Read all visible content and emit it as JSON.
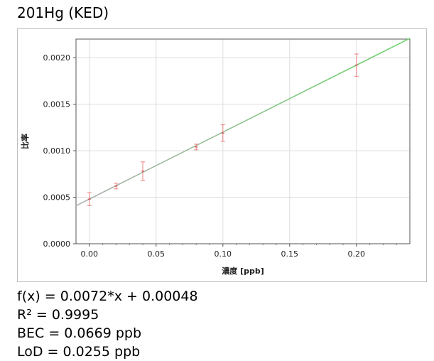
{
  "title": "201Hg (KED)",
  "chart_data": {
    "type": "scatter",
    "xlabel": "濃度 [ppb]",
    "ylabel": "比率",
    "xlim": [
      -0.01,
      0.24
    ],
    "ylim": [
      0,
      0.0022
    ],
    "x_ticks": [
      "0.00",
      "0.05",
      "0.10",
      "0.15",
      "0.20"
    ],
    "y_ticks": [
      "0.0000",
      "0.0005",
      "0.0010",
      "0.0015",
      "0.0020"
    ],
    "grid": true,
    "points": [
      {
        "x": 0.0,
        "y": 0.00048,
        "err": 7e-05
      },
      {
        "x": 0.02,
        "y": 0.00062,
        "err": 3e-05
      },
      {
        "x": 0.04,
        "y": 0.00078,
        "err": 0.0001
      },
      {
        "x": 0.08,
        "y": 0.00104,
        "err": 3e-05
      },
      {
        "x": 0.1,
        "y": 0.00119,
        "err": 9e-05
      },
      {
        "x": 0.2,
        "y": 0.00192,
        "err": 0.00012
      }
    ],
    "fit": {
      "slope": 0.0072,
      "intercept": 0.00048
    },
    "colors": {
      "points": "#f08080",
      "fit_start": "#b0b0b0",
      "fit_end": "#6cd46c",
      "grid": "#dddddd"
    }
  },
  "stats": {
    "fx": "f(x) = 0.0072*x + 0.00048",
    "r2": "R² = 0.9995",
    "bec": "BEC = 0.0669 ppb",
    "lod": "LoD = 0.0255 ppb"
  }
}
